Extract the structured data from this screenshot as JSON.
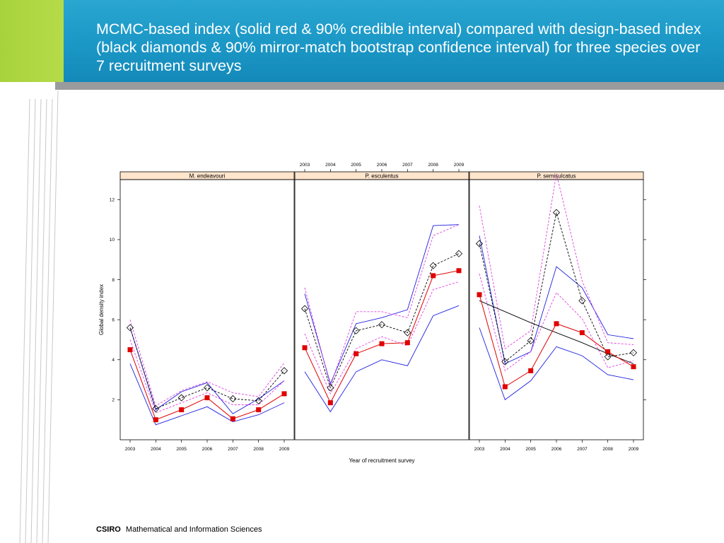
{
  "slide": {
    "title": "MCMC-based index (solid red & 90% credible interval) compared with design-based index (black diamonds & 90% mirror-match bootstrap confidence interval) for three species over 7 recruitment surveys",
    "footer_brand": "CSIRO",
    "footer_text": "Mathematical and Information Sciences",
    "colors": {
      "header_blue": "#1b97c6",
      "header_green": "#b5dc48",
      "header_grey": "#9a9b9d",
      "strip_fill": "#ffe5cc",
      "mcmc_red": "#e00000",
      "ci_blue": "#2020e0",
      "ci_magenta": "#e040e0"
    }
  },
  "chart_data": {
    "type": "line",
    "ylabel": "Global density index",
    "xlabel": "Year of recruitment survey",
    "x": [
      "2003",
      "2004",
      "2005",
      "2006",
      "2007",
      "2008",
      "2009"
    ],
    "ylim": [
      0,
      13
    ],
    "y_ticks": [
      "2",
      "4",
      "6",
      "8",
      "10",
      "12"
    ],
    "panels": [
      {
        "name": "M. endeavouri",
        "mcmc_index": [
          4.5,
          1.0,
          1.5,
          2.1,
          1.05,
          1.5,
          2.3
        ],
        "mcmc_upper": [
          5.6,
          1.5,
          2.4,
          2.85,
          1.3,
          2.05,
          2.95
        ],
        "mcmc_lower": [
          3.8,
          0.75,
          1.2,
          1.65,
          0.9,
          1.25,
          1.85
        ],
        "design_index": [
          5.6,
          1.55,
          2.1,
          2.6,
          2.05,
          1.95,
          3.45
        ],
        "design_upper": [
          6.0,
          1.7,
          2.45,
          2.9,
          2.35,
          2.15,
          3.85
        ],
        "design_lower": [
          5.0,
          1.35,
          1.85,
          2.35,
          1.75,
          1.75,
          2.95
        ]
      },
      {
        "name": "P. esculentus",
        "mcmc_index": [
          4.6,
          1.85,
          4.3,
          4.8,
          4.85,
          8.2,
          8.45
        ],
        "mcmc_upper": [
          7.3,
          2.8,
          5.8,
          6.1,
          6.5,
          10.7,
          10.75
        ],
        "mcmc_lower": [
          3.4,
          1.4,
          3.4,
          4.0,
          3.7,
          6.2,
          6.7
        ],
        "design_index": [
          6.55,
          2.6,
          5.45,
          5.75,
          5.35,
          8.7,
          9.3
        ],
        "design_upper": [
          7.6,
          2.7,
          6.4,
          6.4,
          6.1,
          10.2,
          10.75
        ],
        "design_lower": [
          5.3,
          2.3,
          4.55,
          5.15,
          4.7,
          7.5,
          7.9
        ]
      },
      {
        "name": "P. semisulcatus",
        "mcmc_index": [
          7.25,
          2.65,
          3.45,
          5.8,
          5.35,
          4.4,
          3.65
        ],
        "mcmc_upper": [
          10.2,
          3.8,
          4.4,
          8.65,
          7.6,
          5.25,
          5.05
        ],
        "mcmc_lower": [
          5.6,
          2.0,
          2.95,
          4.65,
          4.2,
          3.25,
          3.0
        ],
        "design_index": [
          9.8,
          3.9,
          4.95,
          11.35,
          6.95,
          4.15,
          4.35
        ],
        "design_upper": [
          11.7,
          4.55,
          5.45,
          13.3,
          7.95,
          4.85,
          4.75
        ],
        "design_lower": [
          8.3,
          3.45,
          4.4,
          7.35,
          6.05,
          3.6,
          3.95
        ],
        "trend_line": [
          6.95,
          6.4,
          5.85,
          5.35,
          4.85,
          4.3,
          3.8
        ]
      }
    ]
  }
}
